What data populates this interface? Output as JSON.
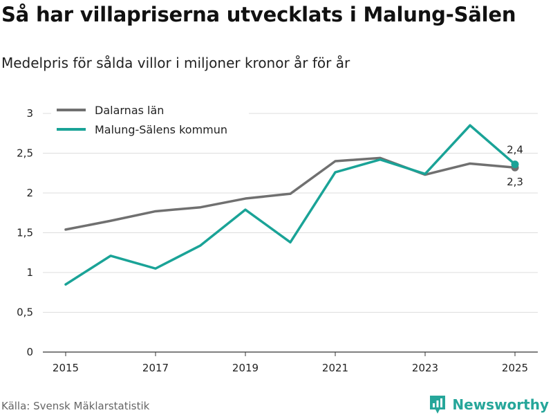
{
  "header": {
    "title": "Så har villapriserna utvecklats i Malung-Sälen",
    "subtitle": "Medelpris för sålda villor i miljoner kronor år för år"
  },
  "footer": {
    "source": "Källa: Svensk Mäklarstatistik",
    "brand": "Newsworthy"
  },
  "colors": {
    "dalarnas": "#707070",
    "malung": "#1aa397",
    "grid": "#dddddd"
  },
  "chart_data": {
    "type": "line",
    "x": [
      2015,
      2016,
      2017,
      2018,
      2019,
      2020,
      2021,
      2022,
      2023,
      2024,
      2025
    ],
    "xticks": [
      "2015",
      "2017",
      "2019",
      "2021",
      "2023",
      "2025"
    ],
    "yticks": [
      "0",
      "0,5",
      "1",
      "1,5",
      "2",
      "2,5",
      "3"
    ],
    "ylim": [
      0,
      3
    ],
    "xlim": [
      2015,
      2025
    ],
    "grid": true,
    "legend_position": "top-left",
    "series": [
      {
        "name": "Dalarnas län",
        "color": "#707070",
        "values": [
          1.54,
          1.65,
          1.77,
          1.82,
          1.93,
          1.99,
          2.4,
          2.44,
          2.23,
          2.37,
          2.32
        ],
        "end_label": "2,3"
      },
      {
        "name": "Malung-Sälens kommun",
        "color": "#1aa397",
        "values": [
          0.85,
          1.21,
          1.05,
          1.34,
          1.79,
          1.38,
          2.26,
          2.42,
          2.24,
          2.85,
          2.36
        ],
        "end_label": "2,4"
      }
    ]
  }
}
